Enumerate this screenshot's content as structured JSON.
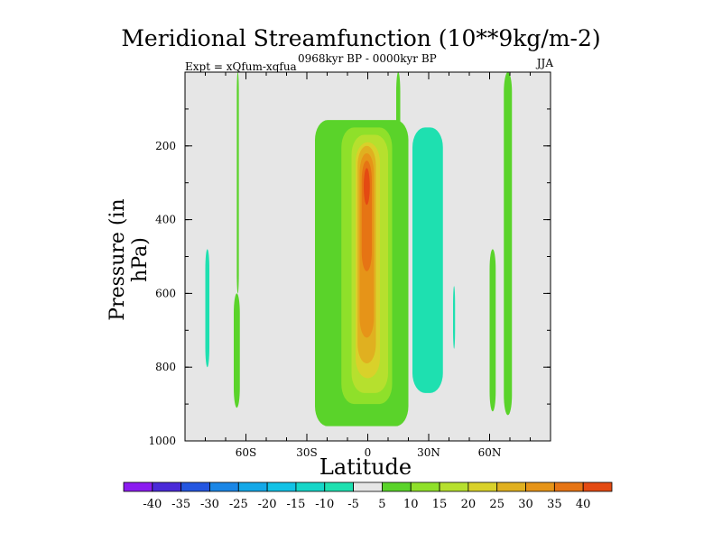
{
  "chart_data": {
    "type": "filled-contour",
    "title": "Meridional Streamfunction (10**9kg/m-2)",
    "subtitle": "0968kyr BP - 0000kyr BP",
    "left_label": "Expt = xQfum-xqfua",
    "right_label": "JJA",
    "xlabel": "Latitude",
    "ylabel": "Pressure (in hPa)",
    "xlim": [
      -90,
      90
    ],
    "ylim": [
      1000,
      0
    ],
    "x_ticks": [
      {
        "value": -60,
        "label": "60S"
      },
      {
        "value": -30,
        "label": "30S"
      },
      {
        "value": 0,
        "label": "0"
      },
      {
        "value": 30,
        "label": "30N"
      },
      {
        "value": 60,
        "label": "60N"
      }
    ],
    "y_ticks": [
      {
        "value": 200,
        "label": "200"
      },
      {
        "value": 400,
        "label": "400"
      },
      {
        "value": 600,
        "label": "600"
      },
      {
        "value": 800,
        "label": "800"
      },
      {
        "value": 1000,
        "label": "1000"
      }
    ],
    "colorbar": {
      "labels": [
        "-40",
        "-35",
        "-30",
        "-25",
        "-20",
        "-15",
        "-10",
        "-5",
        "5",
        "10",
        "15",
        "20",
        "25",
        "30",
        "35",
        "40"
      ],
      "colors": [
        "#8b1cf0",
        "#4a2ad8",
        "#2456e0",
        "#1a86e6",
        "#14a8e8",
        "#12c2e6",
        "#16d6c8",
        "#1ee0b0",
        "#e6e6e6",
        "#5ad32a",
        "#8fe02a",
        "#b6e02e",
        "#d9d12a",
        "#e0b020",
        "#e69418",
        "#e67414",
        "#e44a12"
      ]
    },
    "regions": [
      {
        "level": 5,
        "color": "#5ad32a",
        "lat": [
          -64.5,
          -63.5
        ],
        "p": [
          0,
          600
        ],
        "desc": "thin band 60S upper"
      },
      {
        "level": 5,
        "color": "#5ad32a",
        "lat": [
          -66,
          -63
        ],
        "p": [
          600,
          910
        ]
      },
      {
        "level": -5,
        "color": "#1ee0b0",
        "lat": [
          -80,
          -78
        ],
        "p": [
          480,
          800
        ]
      },
      {
        "level": 5,
        "color": "#5ad32a",
        "lat": [
          -26,
          20
        ],
        "p": [
          130,
          960
        ],
        "desc": "broad green core"
      },
      {
        "level": 10,
        "color": "#8fe02a",
        "lat": [
          -13,
          12
        ],
        "p": [
          150,
          900
        ]
      },
      {
        "level": 15,
        "color": "#b6e02e",
        "lat": [
          -8,
          10
        ],
        "p": [
          170,
          870
        ]
      },
      {
        "level": 20,
        "color": "#d9d12a",
        "lat": [
          -6,
          6
        ],
        "p": [
          190,
          830
        ]
      },
      {
        "level": 25,
        "color": "#e0b020",
        "lat": [
          -5,
          4
        ],
        "p": [
          200,
          790
        ]
      },
      {
        "level": 30,
        "color": "#e69418",
        "lat": [
          -4,
          3
        ],
        "p": [
          220,
          720
        ]
      },
      {
        "level": 35,
        "color": "#e67414",
        "lat": [
          -3,
          2
        ],
        "p": [
          240,
          540
        ]
      },
      {
        "level": 40,
        "color": "#e44a12",
        "lat": [
          -2,
          1
        ],
        "p": [
          260,
          360
        ]
      },
      {
        "level": -5,
        "color": "#1ee0b0",
        "lat": [
          22,
          37
        ],
        "p": [
          150,
          870
        ]
      },
      {
        "level": -5,
        "color": "#1ee0b0",
        "lat": [
          42,
          43
        ],
        "p": [
          580,
          750
        ]
      },
      {
        "level": 5,
        "color": "#5ad32a",
        "lat": [
          14,
          16
        ],
        "p": [
          0,
          200
        ]
      },
      {
        "level": 5,
        "color": "#5ad32a",
        "lat": [
          60,
          63
        ],
        "p": [
          480,
          920
        ]
      },
      {
        "level": 5,
        "color": "#5ad32a",
        "lat": [
          67,
          71
        ],
        "p": [
          0,
          930
        ]
      }
    ]
  }
}
